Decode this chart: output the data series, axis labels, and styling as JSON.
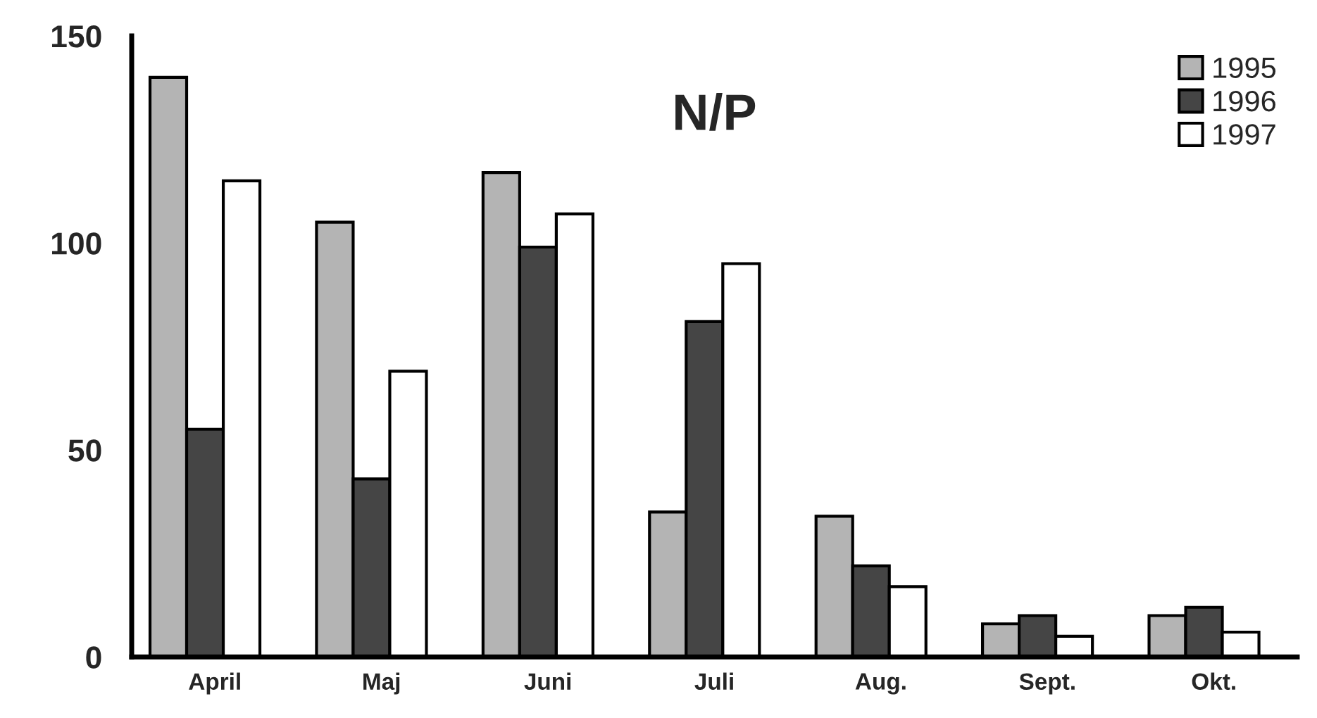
{
  "chart_data": {
    "type": "bar",
    "title": "N/P",
    "categories": [
      "April",
      "Maj",
      "Juni",
      "Juli",
      "Aug.",
      "Sept.",
      "Okt."
    ],
    "series": [
      {
        "name": "1995",
        "color": "#b4b4b4",
        "values": [
          140,
          105,
          117,
          35,
          34,
          8,
          10
        ]
      },
      {
        "name": "1996",
        "color": "#454545",
        "values": [
          55,
          43,
          99,
          81,
          22,
          10,
          12
        ]
      },
      {
        "name": "1997",
        "color": "#ffffff",
        "values": [
          115,
          69,
          107,
          95,
          17,
          5,
          6
        ]
      }
    ],
    "ylim": [
      0,
      150
    ],
    "yticks": [
      0,
      50,
      100,
      150
    ],
    "grid": false,
    "legend": "top right"
  }
}
